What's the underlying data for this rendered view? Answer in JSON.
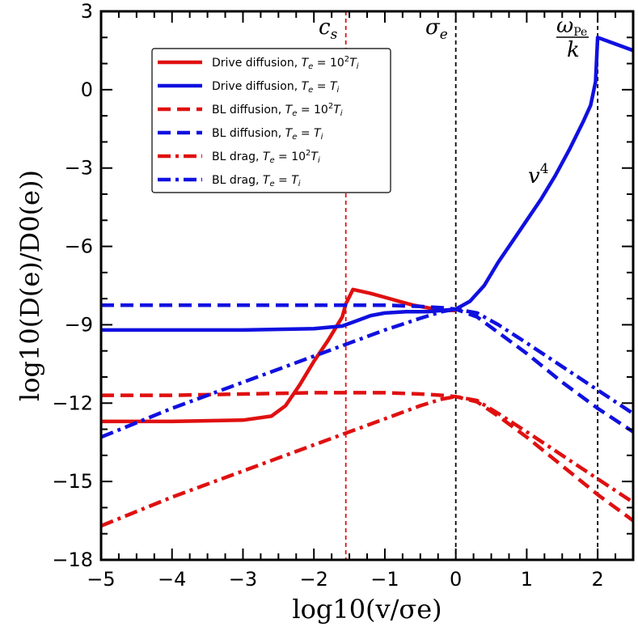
{
  "chart_data": {
    "type": "line",
    "title": "",
    "xlabel": "log10(v/σe)",
    "ylabel": "log10(D(e)/D0(e))",
    "xlim": [
      -5,
      2.5
    ],
    "ylim": [
      -18,
      3
    ],
    "xticks": [
      -5,
      -4,
      -3,
      -2,
      -1,
      0,
      1,
      2
    ],
    "xtick_labels": [
      "−5",
      "−4",
      "−3",
      "−2",
      "−1",
      "0",
      "1",
      "2"
    ],
    "yticks": [
      3,
      0,
      -3,
      -6,
      -9,
      -12,
      -15,
      -18
    ],
    "ytick_labels": [
      "3",
      "0",
      "−3",
      "−6",
      "−9",
      "−12",
      "−15",
      "−18"
    ],
    "grid": false,
    "legend_position": "top-left",
    "vlines": [
      {
        "x": -1.55,
        "color": "#e01010",
        "label": "c_s"
      },
      {
        "x": 0,
        "color": "#000000",
        "label": "σ_e"
      },
      {
        "x": 2,
        "color": "#000000",
        "label": "ωPe/k"
      }
    ],
    "annotations": {
      "cs": "c",
      "cs_sub": "s",
      "sigma": "σ",
      "sigma_sub": "e",
      "omega": "ω",
      "omega_sub": "Pe",
      "omega_den": "k",
      "v4": "v",
      "v4_sup": "4"
    },
    "series": [
      {
        "name": "Drive diffusion, Te = 10²Ti",
        "legend": "Drive diffusion, ",
        "legend_math": "T",
        "legend_math_sub": "e",
        "legend_math_rest": " = 10",
        "legend_math_sup": "2",
        "legend_math_end": "T",
        "legend_math_end_sub": "i",
        "color": "#e01010",
        "style": "solid",
        "x": [
          -5,
          -4,
          -3,
          -2.6,
          -2.4,
          -2.2,
          -2.0,
          -1.8,
          -1.6,
          -1.55,
          -1.45,
          -1.2,
          -1.0,
          -0.8,
          -0.6,
          -0.4,
          -0.2,
          0
        ],
        "y": [
          -12.7,
          -12.7,
          -12.65,
          -12.5,
          -12.1,
          -11.3,
          -10.4,
          -9.6,
          -8.7,
          -8.2,
          -7.65,
          -7.8,
          -7.95,
          -8.1,
          -8.25,
          -8.35,
          -8.45,
          -8.45
        ]
      },
      {
        "name": "Drive diffusion, Te = Ti",
        "legend": "Drive diffusion, ",
        "legend_math": "T",
        "legend_math_sub": "e",
        "legend_math_rest": " = ",
        "legend_math_sup": "",
        "legend_math_end": "T",
        "legend_math_end_sub": "i",
        "color": "#1010e0",
        "style": "solid",
        "x": [
          -5,
          -4,
          -3,
          -2,
          -1.6,
          -1.4,
          -1.2,
          -1.0,
          -0.7,
          -0.4,
          -0.2,
          0,
          0.2,
          0.4,
          0.6,
          0.8,
          1.0,
          1.2,
          1.4,
          1.6,
          1.8,
          1.9,
          1.97,
          2.0,
          2.5
        ],
        "y": [
          -9.2,
          -9.2,
          -9.2,
          -9.15,
          -9.05,
          -8.85,
          -8.65,
          -8.55,
          -8.5,
          -8.5,
          -8.45,
          -8.4,
          -8.1,
          -7.5,
          -6.6,
          -5.8,
          -5.0,
          -4.2,
          -3.3,
          -2.3,
          -1.2,
          -0.6,
          0.3,
          2.0,
          1.5
        ]
      },
      {
        "name": "BL diffusion, Te = 10²Ti",
        "legend": "BL diffusion, ",
        "legend_math": "T",
        "legend_math_sub": "e",
        "legend_math_rest": " = 10",
        "legend_math_sup": "2",
        "legend_math_end": "T",
        "legend_math_end_sub": "i",
        "color": "#e01010",
        "style": "dashed",
        "x": [
          -5,
          -4,
          -3,
          -2,
          -1.5,
          -1.0,
          -0.5,
          -0.2,
          0,
          0.3,
          0.6,
          1.0,
          1.5,
          2.0,
          2.5
        ],
        "y": [
          -11.7,
          -11.7,
          -11.65,
          -11.6,
          -11.6,
          -11.6,
          -11.65,
          -11.7,
          -11.75,
          -11.95,
          -12.5,
          -13.3,
          -14.4,
          -15.5,
          -16.5
        ]
      },
      {
        "name": "BL diffusion, Te = Ti",
        "legend": "BL diffusion, ",
        "legend_math": "T",
        "legend_math_sub": "e",
        "legend_math_rest": " = ",
        "legend_math_sup": "",
        "legend_math_end": "T",
        "legend_math_end_sub": "i",
        "color": "#1010e0",
        "style": "dashed",
        "x": [
          -5,
          -4,
          -3,
          -2,
          -1.5,
          -1.0,
          -0.5,
          -0.2,
          0,
          0.3,
          0.6,
          1.0,
          1.5,
          2.0,
          2.5
        ],
        "y": [
          -8.25,
          -8.25,
          -8.25,
          -8.25,
          -8.25,
          -8.25,
          -8.3,
          -8.35,
          -8.4,
          -8.7,
          -9.3,
          -10.1,
          -11.2,
          -12.2,
          -13.1
        ]
      },
      {
        "name": "BL drag, Te = 10²Ti",
        "legend": "BL drag, ",
        "legend_math": "T",
        "legend_math_sub": "e",
        "legend_math_rest": " = 10",
        "legend_math_sup": "2",
        "legend_math_end": "T",
        "legend_math_end_sub": "i",
        "color": "#e01010",
        "style": "dashdot",
        "x": [
          -5,
          -4,
          -3,
          -2,
          -1.0,
          -0.5,
          -0.2,
          0,
          0.3,
          0.6,
          1.0,
          1.5,
          2.0,
          2.5
        ],
        "y": [
          -16.7,
          -15.6,
          -14.6,
          -13.6,
          -12.6,
          -12.1,
          -11.85,
          -11.75,
          -11.9,
          -12.4,
          -13.1,
          -14.0,
          -14.9,
          -15.8
        ]
      },
      {
        "name": "BL drag, Te = Ti",
        "legend": "BL drag, ",
        "legend_math": "T",
        "legend_math_sub": "e",
        "legend_math_rest": " = ",
        "legend_math_sup": "",
        "legend_math_end": "T",
        "legend_math_end_sub": "i",
        "color": "#1010e0",
        "style": "dashdot",
        "x": [
          -5,
          -4,
          -3,
          -2,
          -1.0,
          -0.5,
          -0.2,
          0,
          0.3,
          0.6,
          1.0,
          1.5,
          2.0,
          2.5
        ],
        "y": [
          -13.3,
          -12.2,
          -11.2,
          -10.2,
          -9.2,
          -8.75,
          -8.5,
          -8.4,
          -8.55,
          -9.0,
          -9.7,
          -10.6,
          -11.5,
          -12.4
        ]
      }
    ]
  }
}
